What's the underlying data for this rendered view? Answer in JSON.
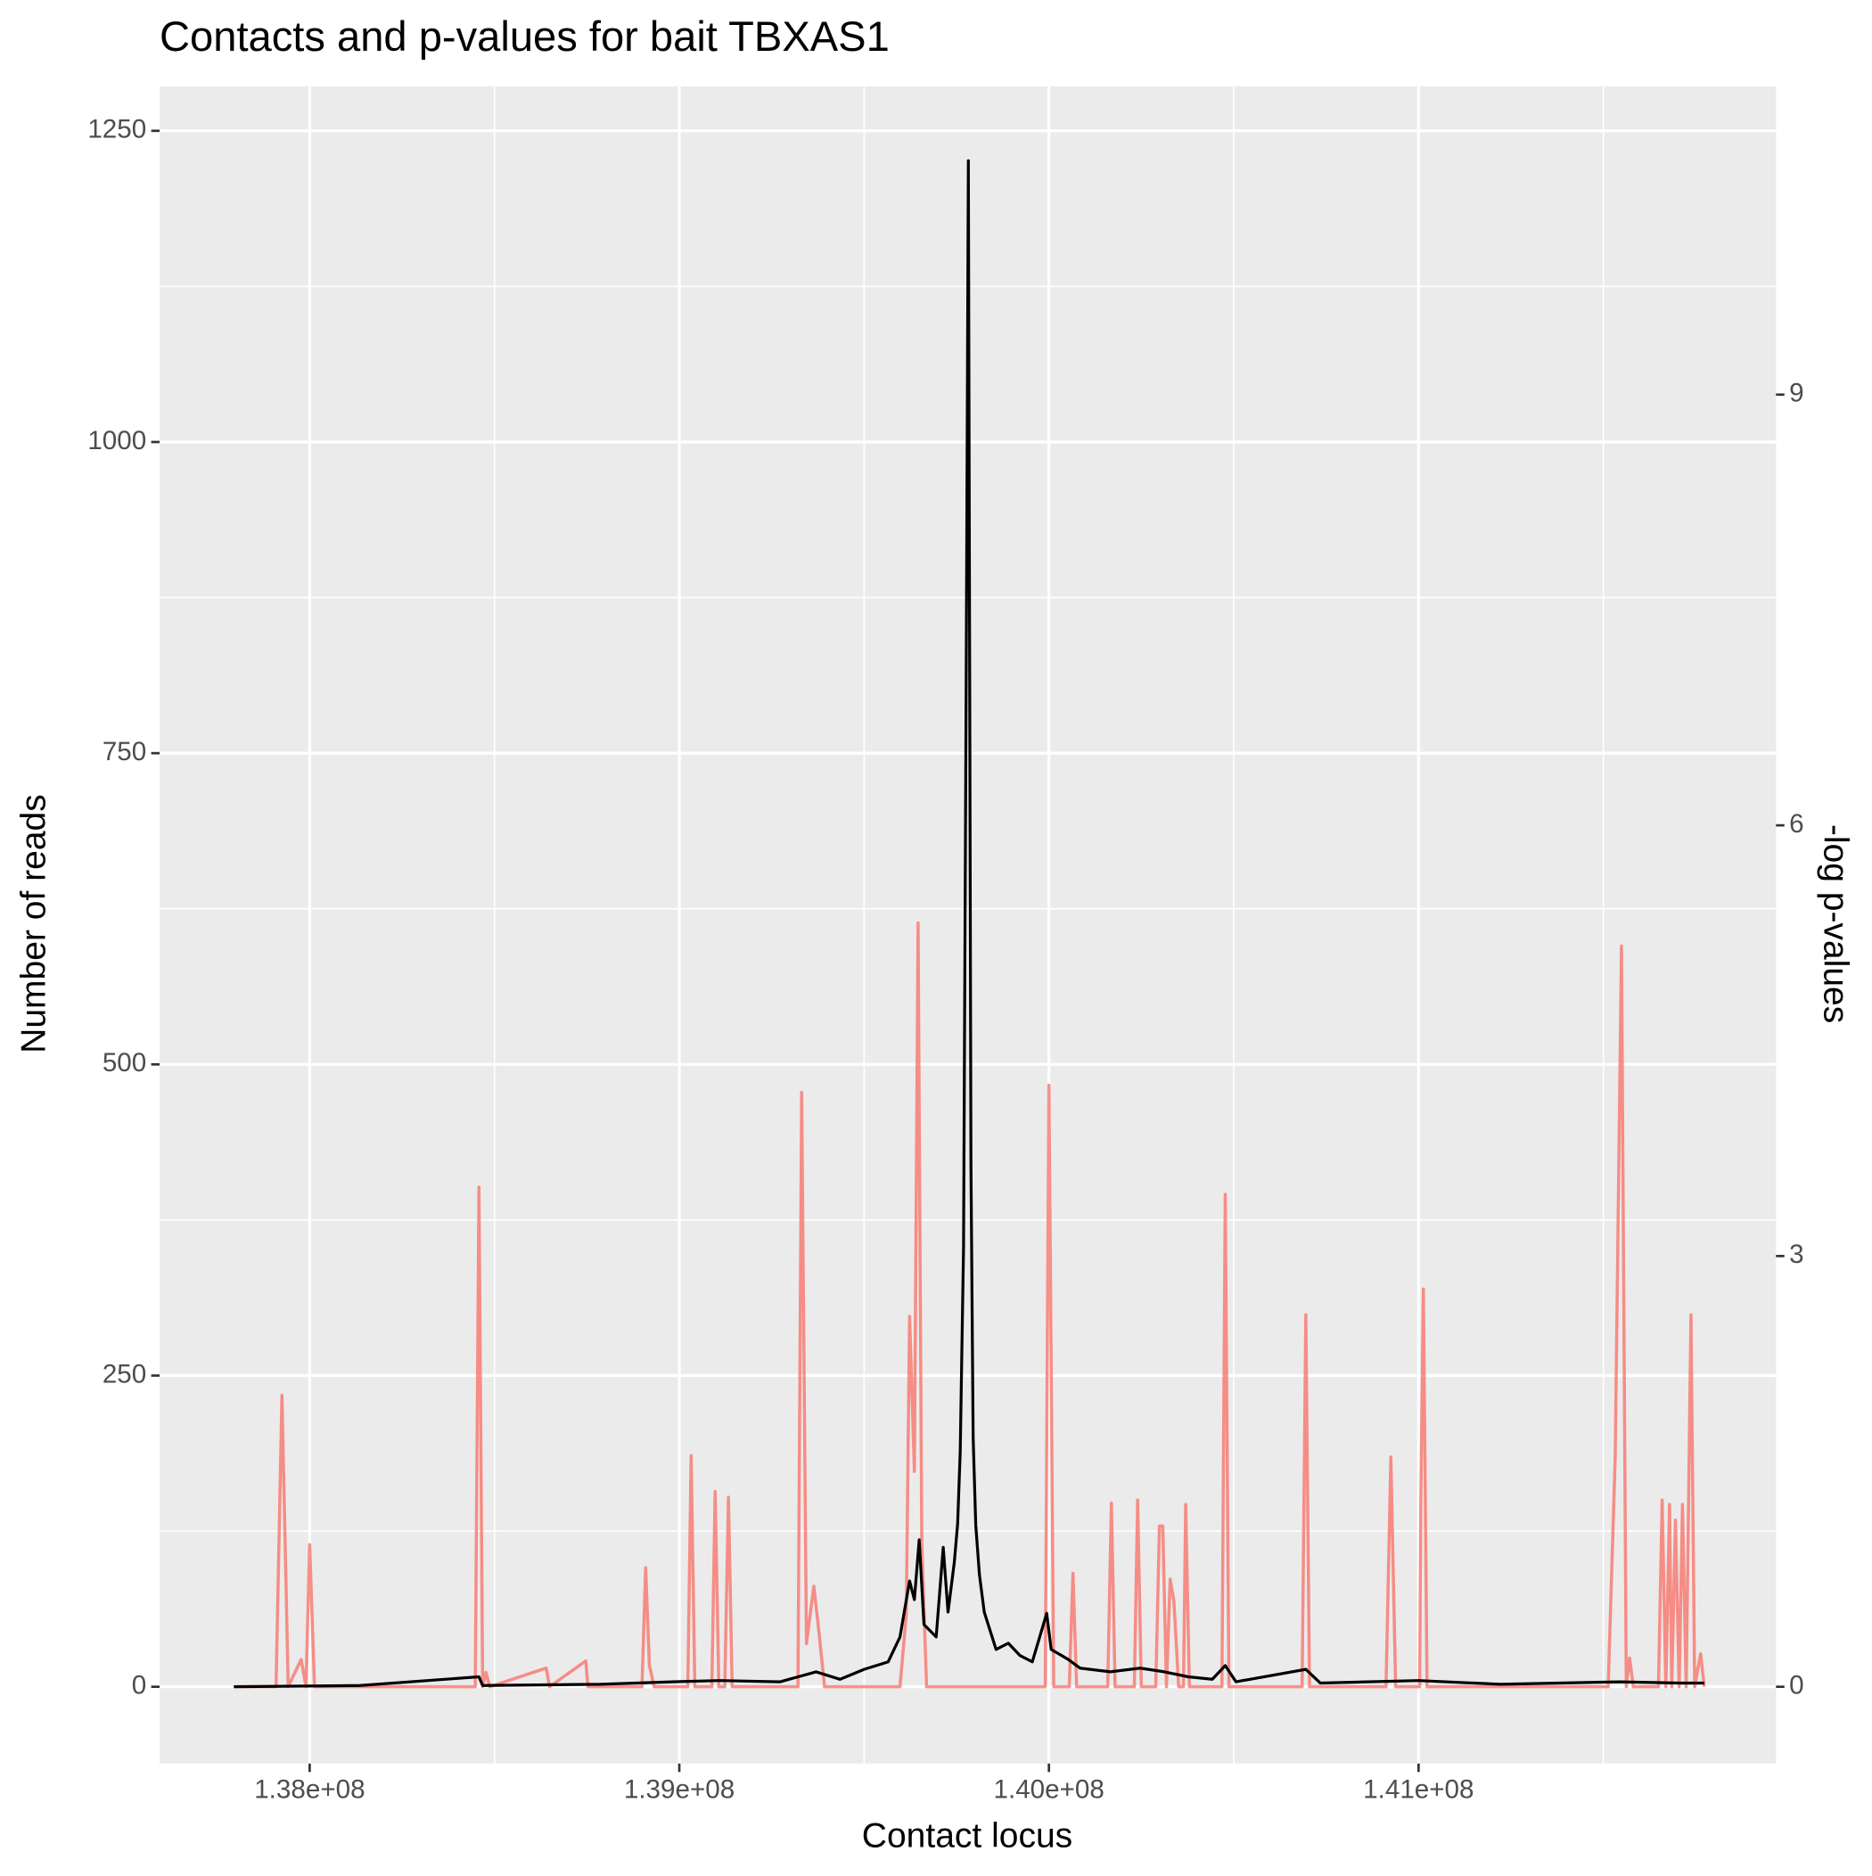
{
  "chart_data": {
    "type": "line",
    "title": "Contacts and p-values for bait TBXAS1",
    "x_label": "Contact locus",
    "y_label": "Number of reads",
    "y2_label": "-log p-values",
    "xlim": [
      137594000,
      141967000
    ],
    "ylim": [
      -61.7,
      1285.7
    ],
    "y2lim": [
      -0.535,
      11.147
    ],
    "xticks": [
      {
        "value": 138000000,
        "label": "1.38e+08"
      },
      {
        "value": 139000000,
        "label": "1.39e+08"
      },
      {
        "value": 140000000,
        "label": "1.40e+08"
      },
      {
        "value": 141000000,
        "label": "1.41e+08"
      }
    ],
    "minor_xticks": [
      137500000,
      138500000,
      139500000,
      140500000,
      141500000
    ],
    "yticks": [
      0,
      250,
      500,
      750,
      1000,
      1250
    ],
    "minor_yticks": [
      125,
      375,
      625,
      875,
      1125
    ],
    "y2ticks": [
      0,
      3,
      6,
      9
    ],
    "grid": true,
    "series": [
      {
        "color": "#f8766d",
        "axis": "y2",
        "x": [
          137795000,
          137909000,
          137925000,
          137942000,
          137977000,
          137990000,
          138000000,
          138013000,
          138448000,
          138458000,
          138468000,
          138477000,
          138487000,
          138640000,
          138649000,
          138747000,
          138753000,
          138899000,
          138909000,
          138919000,
          138932000,
          139023000,
          139032000,
          139042000,
          139088000,
          139097000,
          139107000,
          139123000,
          139133000,
          139143000,
          139321000,
          139331000,
          139344000,
          139364000,
          139377000,
          139393000,
          139597000,
          139614000,
          139623000,
          139636000,
          139646000,
          139656000,
          139669000,
          139974000,
          139990000,
          140000000,
          140013000,
          140055000,
          140065000,
          140075000,
          140159000,
          140169000,
          140179000,
          140231000,
          140240000,
          140250000,
          140289000,
          140299000,
          140308000,
          140318000,
          140328000,
          140338000,
          140351000,
          140364000,
          140370000,
          140380000,
          140468000,
          140477000,
          140487000,
          140685000,
          140695000,
          140705000,
          140912000,
          140925000,
          140938000,
          141003000,
          141006000,
          141013000,
          141023000,
          141513000,
          141532000,
          141549000,
          141562000,
          141571000,
          141581000,
          141649000,
          141659000,
          141669000,
          141679000,
          141685000,
          141695000,
          141705000,
          141714000,
          141724000,
          141737000,
          141747000,
          141763000,
          141773000
        ],
        "values": [
          0,
          0,
          2.03,
          0,
          0.19,
          0,
          0.99,
          0,
          0,
          3.48,
          0,
          0.1,
          0,
          0.13,
          0,
          0.18,
          0,
          0,
          0.83,
          0.15,
          0,
          0,
          1.61,
          0,
          0,
          1.36,
          0,
          0,
          1.32,
          0,
          0,
          4.14,
          0.3,
          0.7,
          0.4,
          0,
          0,
          0.5,
          2.58,
          1.5,
          5.32,
          1.0,
          0,
          0,
          0,
          4.19,
          0,
          0,
          0.79,
          0,
          0,
          1.28,
          0,
          0,
          1.3,
          0,
          0,
          1.12,
          1.12,
          0,
          0.75,
          0.6,
          0,
          0,
          1.27,
          0,
          0,
          3.43,
          0,
          0,
          2.59,
          0,
          0,
          1.6,
          0,
          0,
          1.28,
          2.77,
          0,
          0,
          1.6,
          5.16,
          0,
          0.2,
          0,
          0,
          1.3,
          0,
          1.27,
          0,
          1.16,
          0,
          1.27,
          0,
          2.59,
          0,
          0.23,
          0
        ]
      },
      {
        "color": "#000000",
        "x": [
          137795000,
          138136000,
          138458000,
          138468000,
          138786000,
          138981000,
          139110000,
          139273000,
          139370000,
          139435000,
          139500000,
          139565000,
          139597000,
          139623000,
          139636000,
          139649000,
          139662000,
          139695000,
          139714000,
          139727000,
          139744000,
          139753000,
          139760000,
          139769000,
          139776000,
          139782000,
          139789000,
          139795000,
          139802000,
          139812000,
          139825000,
          139857000,
          139890000,
          139922000,
          139955000,
          139994000,
          140006000,
          140052000,
          140084000,
          140166000,
          140247000,
          140312000,
          140377000,
          140442000,
          140477000,
          140506000,
          140695000,
          140734000,
          141000000,
          141221000,
          141545000,
          141708000,
          141773000
        ],
        "values": [
          0,
          1,
          8,
          1,
          2,
          4,
          5,
          4,
          12,
          6,
          14,
          20,
          40,
          85,
          70,
          118,
          50,
          40,
          112,
          60,
          100,
          131,
          189,
          353,
          800,
          1226,
          420,
          200,
          130,
          90,
          60,
          30,
          35,
          25,
          20,
          59,
          30,
          22,
          15,
          12,
          15,
          12,
          8,
          6,
          17,
          4,
          14,
          3,
          5,
          2,
          4,
          3,
          3
        ]
      }
    ]
  }
}
